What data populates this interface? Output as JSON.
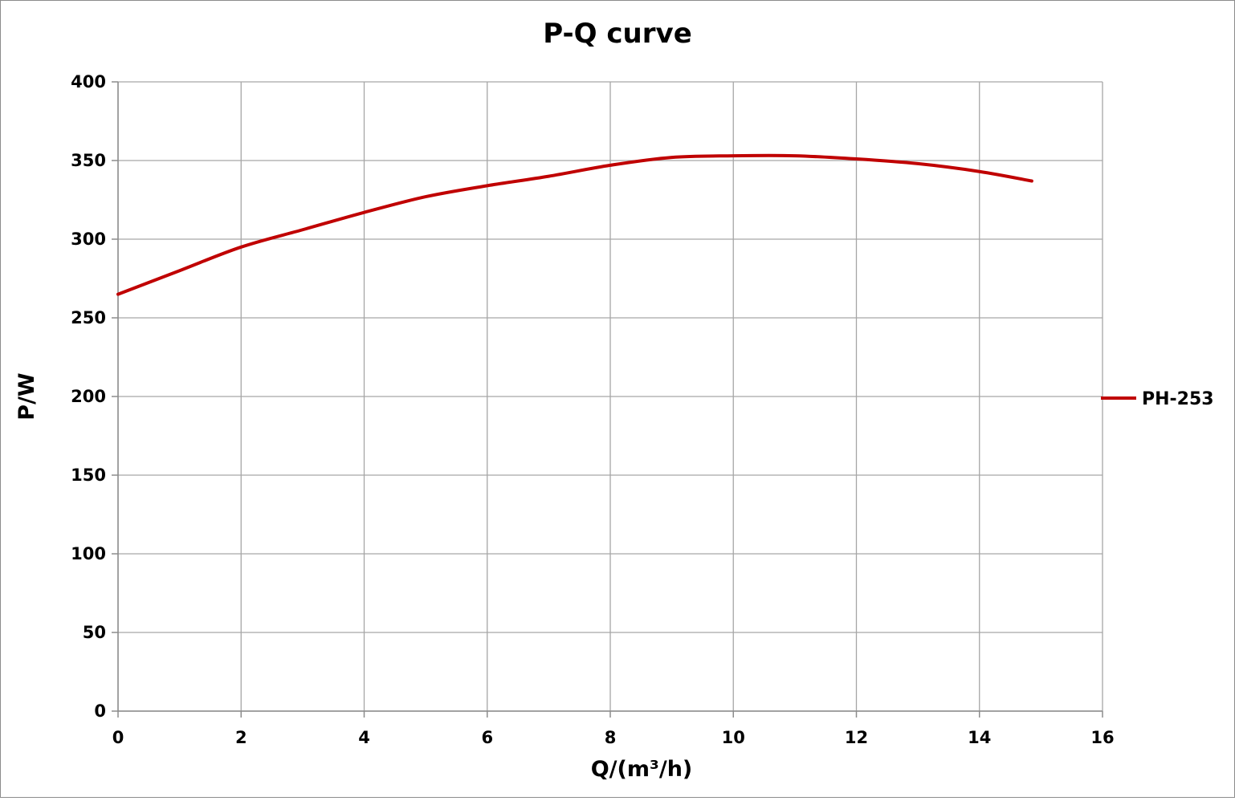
{
  "chart_data": {
    "type": "line",
    "title": "P-Q  curve",
    "xlabel": "Q/(m³/h)",
    "ylabel": "P/W",
    "xlim": [
      0,
      16
    ],
    "ylim": [
      0,
      400
    ],
    "xticks": [
      "0",
      "2",
      "4",
      "6",
      "8",
      "10",
      "12",
      "14",
      "16"
    ],
    "yticks": [
      "0",
      "50",
      "100",
      "150",
      "200",
      "250",
      "300",
      "350",
      "400"
    ],
    "grid": true,
    "legend_position": "right",
    "series": [
      {
        "name": "PH-253",
        "color": "#c00000",
        "x": [
          0,
          1,
          2,
          3,
          4,
          5,
          6,
          7,
          8,
          9,
          10,
          11,
          12,
          13,
          14,
          14.85
        ],
        "y": [
          265,
          280,
          295,
          306,
          317,
          327,
          334,
          340,
          347,
          352,
          353,
          353,
          351,
          348,
          343,
          337
        ]
      }
    ]
  }
}
